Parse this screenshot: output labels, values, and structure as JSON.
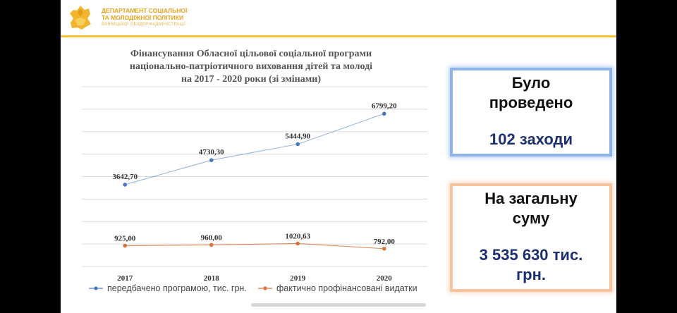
{
  "header": {
    "org_line1": "Департамент соціальної",
    "org_line2": "та молодіжної політики",
    "org_line3": "вінницької облдержадміністрації"
  },
  "chart_title_lines": [
    "Фінансування Обласної цільової соціальної програми",
    "національно-патріотичного виховання дітей та молоді",
    "на 2017 - 2020 роки (зі змінами)"
  ],
  "info_boxes": {
    "events": {
      "line1": "Було",
      "line2": "проведено",
      "line3": "102 заходи"
    },
    "total": {
      "line1": "На загальну",
      "line2": "суму",
      "line3": "3 535 630 тис.",
      "line4": "грн."
    }
  },
  "colors": {
    "planned_series": "#4a78c2",
    "actual_series": "#d8743a",
    "logo": "#f2b62e",
    "header_accent": "#f6c23a"
  },
  "chart_data": {
    "type": "line",
    "title": "Фінансування Обласної цільової соціальної програми національно-патріотичного виховання дітей та молоді на 2017 - 2020 роки (зі змінами)",
    "x": [
      "2017",
      "2018",
      "2019",
      "2020"
    ],
    "series": [
      {
        "name": "передбачено програмою, тис. грн.",
        "values": [
          3642.7,
          4730.3,
          5444.9,
          6799.2
        ],
        "labels": [
          "3642,70",
          "4730,30",
          "5444,90",
          "6799,20"
        ]
      },
      {
        "name": "фактично профінансовані видатки",
        "values": [
          925.0,
          960.0,
          1020.63,
          792.0
        ],
        "labels": [
          "925,00",
          "960,00",
          "1020,63",
          "792,00"
        ]
      }
    ],
    "ylim": [
      0,
      8000
    ],
    "grid": true,
    "legend": "bottom"
  }
}
